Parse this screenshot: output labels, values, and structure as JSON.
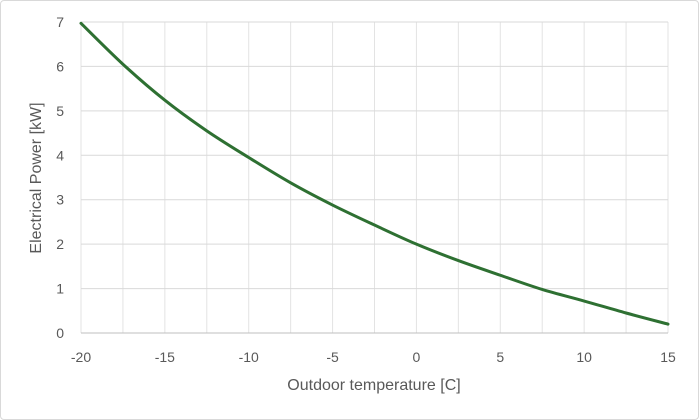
{
  "chart_data": {
    "type": "line",
    "title": "",
    "xlabel": "Outdoor temperature [C]",
    "ylabel": "Electrical Power [kW]",
    "xlim": [
      -20,
      15
    ],
    "ylim": [
      0,
      7
    ],
    "xticks": [
      -20,
      -15,
      -10,
      -5,
      0,
      5,
      10,
      15
    ],
    "yticks": [
      0,
      1,
      2,
      3,
      4,
      5,
      6,
      7
    ],
    "x_minor_step": 2.5,
    "grid": true,
    "legend": "none",
    "line_color": "#2e7032",
    "series": [
      {
        "x": [
          -20,
          -17.5,
          -15,
          -12.5,
          -10,
          -7.5,
          -5,
          -2.5,
          0,
          2.5,
          5,
          7.5,
          10,
          12.5,
          15
        ],
        "values": [
          6.97,
          6.05,
          5.24,
          4.55,
          3.95,
          3.38,
          2.88,
          2.43,
          2.0,
          1.63,
          1.3,
          0.98,
          0.72,
          0.45,
          0.2
        ]
      }
    ]
  }
}
